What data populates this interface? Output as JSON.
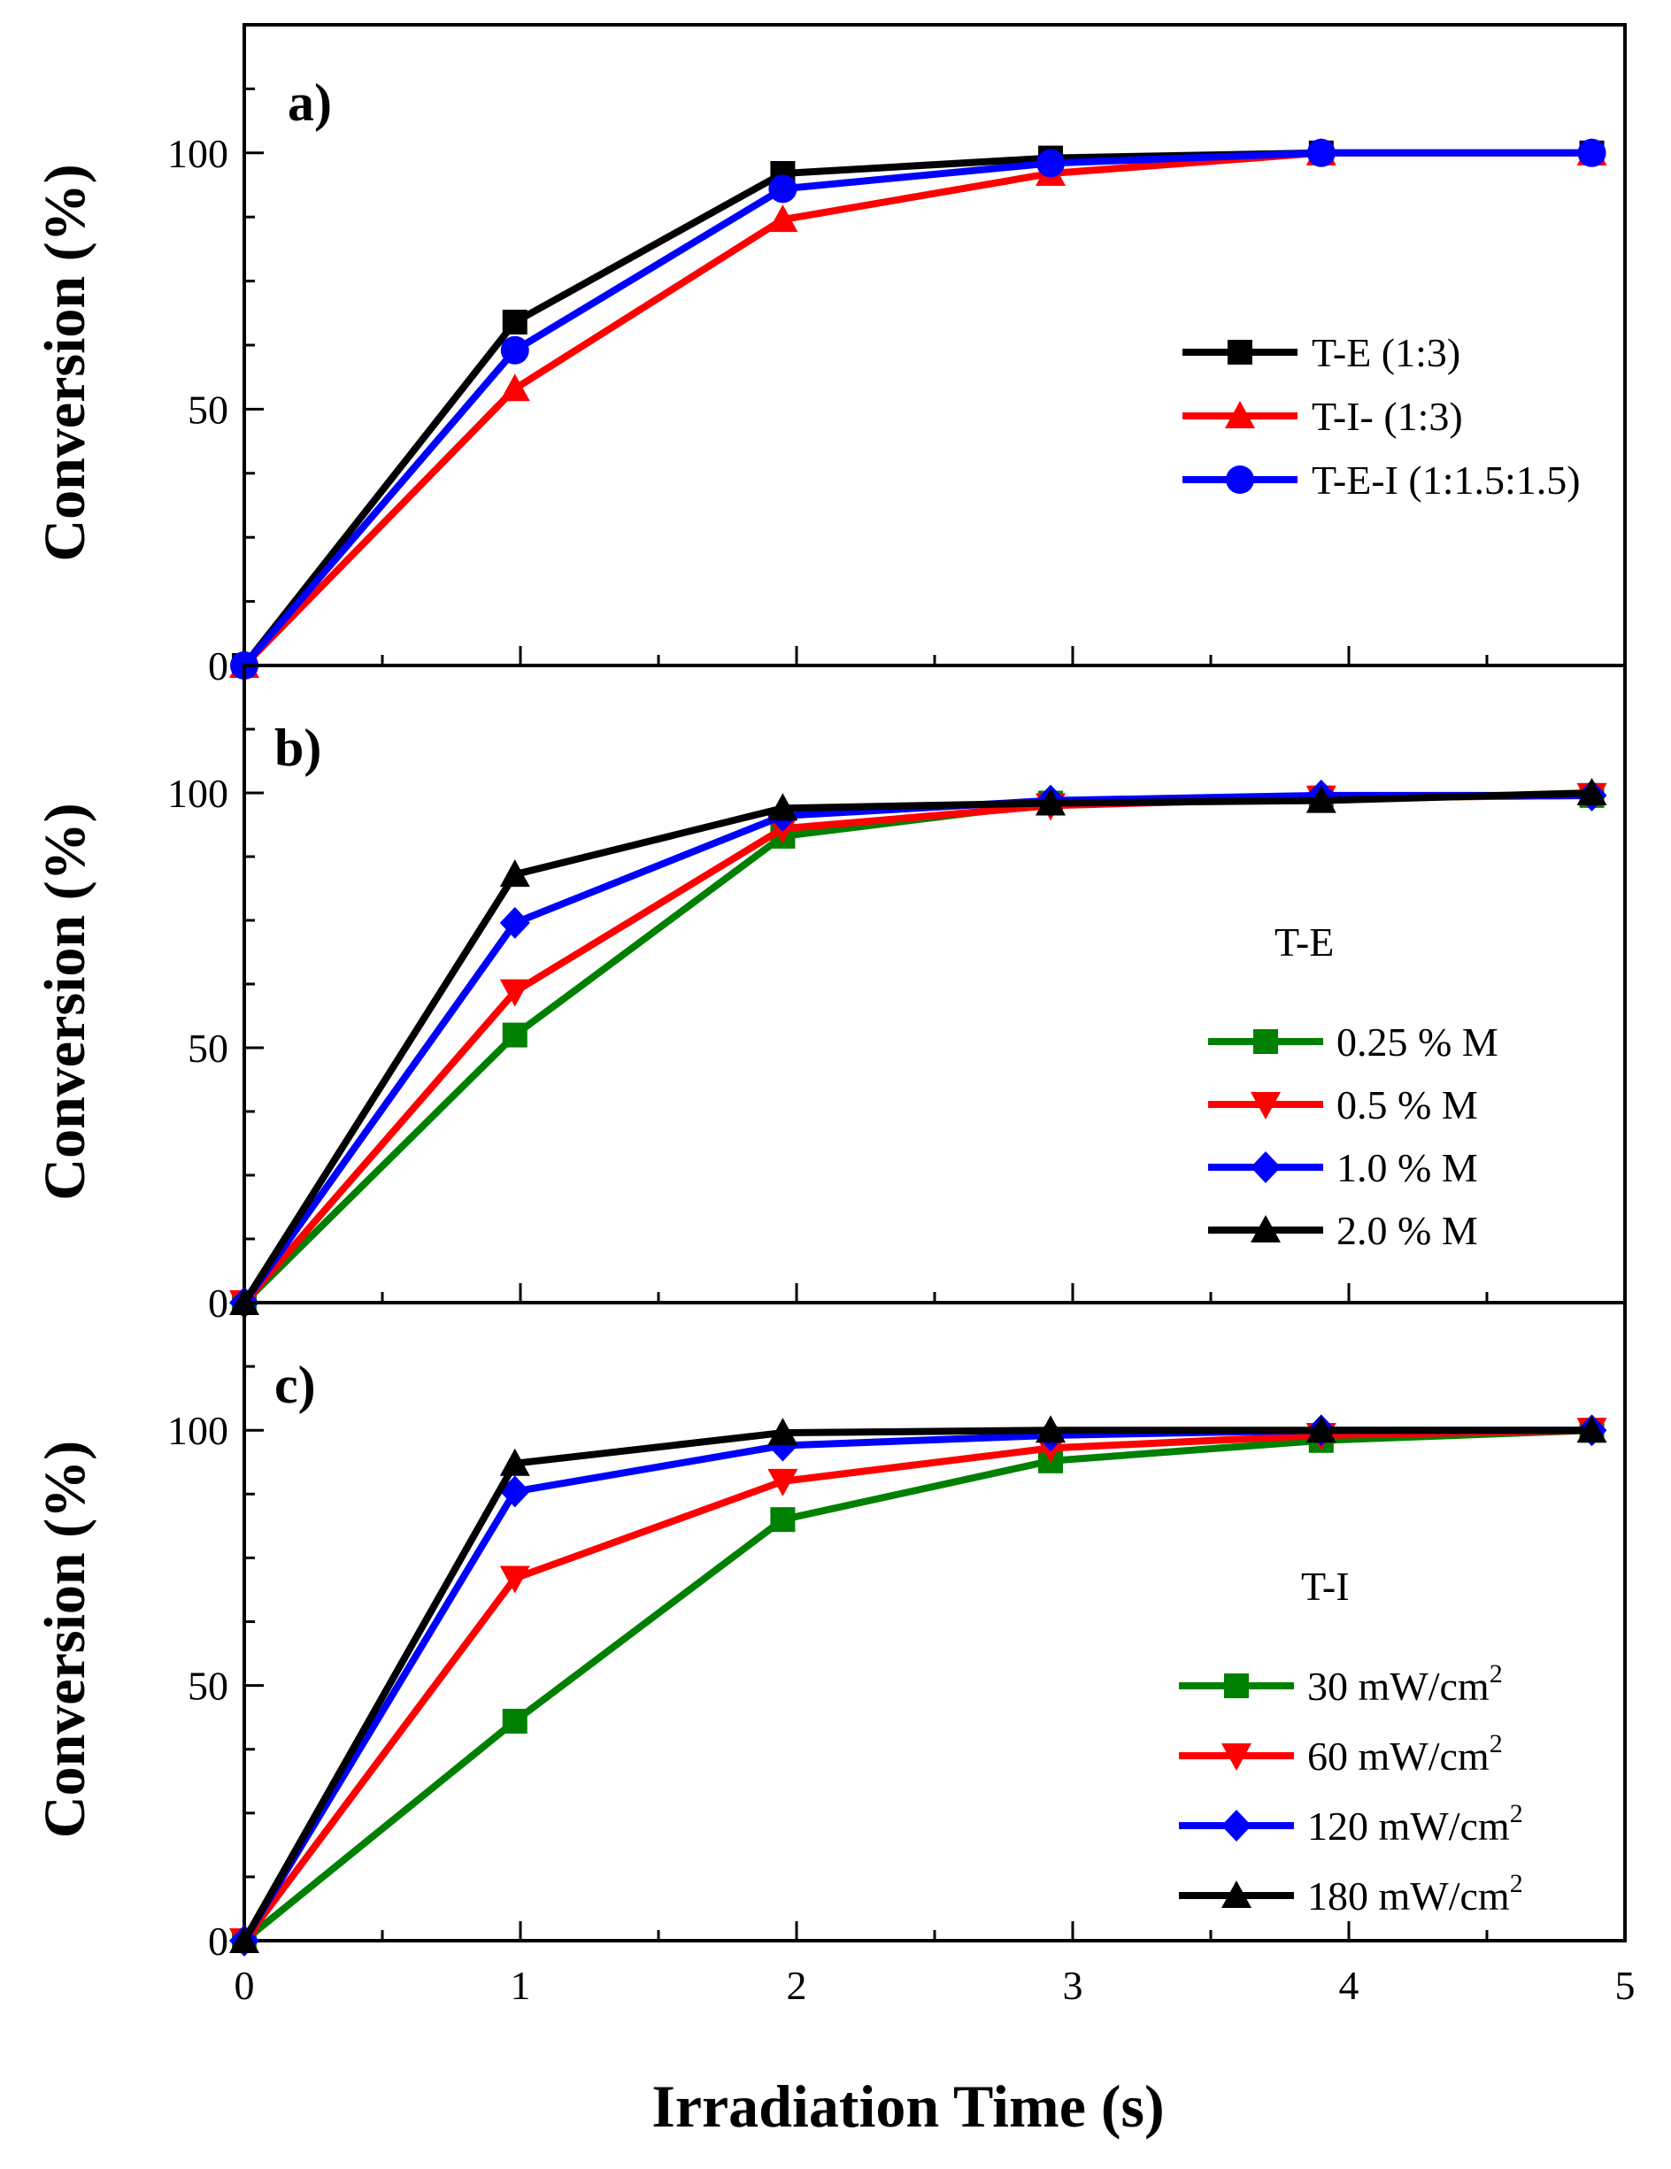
{
  "chart_data": [
    {
      "type": "line",
      "title": "a)",
      "xlabel": "",
      "ylabel": "Conversion (%)",
      "xlim": [
        0,
        5
      ],
      "ylim": [
        0,
        125
      ],
      "xticks": [
        "0",
        "1",
        "2",
        "3",
        "4",
        "5"
      ],
      "yticks": [
        "0",
        "50",
        "100"
      ],
      "annotation": "",
      "series": [
        {
          "name": "T-E (1:3)",
          "color": "#000000",
          "marker": "square",
          "x": [
            0,
            0.98,
            1.95,
            2.92,
            3.9,
            4.88
          ],
          "values": [
            0,
            67,
            96,
            99,
            100,
            100
          ]
        },
        {
          "name": "T-I- (1:3)",
          "color": "#ff0000",
          "marker": "triangle-up",
          "x": [
            0,
            0.98,
            1.95,
            2.92,
            3.9,
            4.88
          ],
          "values": [
            0,
            54,
            87,
            96,
            100,
            100
          ]
        },
        {
          "name": "T-E-I (1:1.5:1.5)",
          "color": "#0000ff",
          "marker": "circle",
          "x": [
            0,
            0.98,
            1.95,
            2.92,
            3.9,
            4.88
          ],
          "values": [
            0,
            61.5,
            93,
            98,
            100,
            100
          ]
        }
      ]
    },
    {
      "type": "line",
      "title": "b)",
      "xlabel": "",
      "ylabel": "Conversion (%)",
      "xlim": [
        0,
        5
      ],
      "ylim": [
        0,
        125
      ],
      "xticks": [
        "0",
        "1",
        "2",
        "3",
        "4",
        "5"
      ],
      "yticks": [
        "0",
        "50",
        "100"
      ],
      "annotation": "T-E",
      "series": [
        {
          "name": "0.25 % M",
          "color": "#008000",
          "marker": "square",
          "x": [
            0,
            0.98,
            1.95,
            2.92,
            3.9,
            4.88
          ],
          "values": [
            0,
            52.5,
            91.5,
            98,
            99,
            99.5
          ]
        },
        {
          "name": "0.5 % M",
          "color": "#ff0000",
          "marker": "triangle-down",
          "x": [
            0,
            0.98,
            1.95,
            2.92,
            3.9,
            4.88
          ],
          "values": [
            0,
            61,
            93,
            97.5,
            99,
            99.5
          ]
        },
        {
          "name": "1.0 % M",
          "color": "#0000ff",
          "marker": "diamond",
          "x": [
            0,
            0.98,
            1.95,
            2.92,
            3.9,
            4.88
          ],
          "values": [
            0,
            74.5,
            95.5,
            98.5,
            99.5,
            99.5
          ]
        },
        {
          "name": "2.0 % M",
          "color": "#000000",
          "marker": "triangle-up",
          "x": [
            0,
            0.98,
            1.95,
            2.92,
            3.9,
            4.88
          ],
          "values": [
            0,
            84,
            97,
            98,
            98.5,
            100
          ]
        }
      ]
    },
    {
      "type": "line",
      "title": "c)",
      "xlabel": "Irradiation Time (s)",
      "ylabel": "Conversion (%)",
      "xlim": [
        0,
        5
      ],
      "ylim": [
        0,
        125
      ],
      "xticks": [
        "0",
        "1",
        "2",
        "3",
        "4",
        "5"
      ],
      "yticks": [
        "0",
        "50",
        "100"
      ],
      "annotation": "T-I",
      "series": [
        {
          "name": "30 mW/cm",
          "sup": "2",
          "color": "#008000",
          "marker": "square",
          "x": [
            0,
            0.98,
            1.95,
            2.92,
            3.9,
            4.88
          ],
          "values": [
            0,
            43,
            82.5,
            94,
            98,
            100
          ]
        },
        {
          "name": "60 mW/cm",
          "sup": "2",
          "color": "#ff0000",
          "marker": "triangle-down",
          "x": [
            0,
            0.98,
            1.95,
            2.92,
            3.9,
            4.88
          ],
          "values": [
            0,
            71,
            90,
            96.5,
            99,
            100
          ]
        },
        {
          "name": "120 mW/cm",
          "sup": "2",
          "color": "#0000ff",
          "marker": "diamond",
          "x": [
            0,
            0.98,
            1.95,
            2.92,
            3.9,
            4.88
          ],
          "values": [
            0,
            88,
            97,
            99,
            100,
            100
          ]
        },
        {
          "name": "180 mW/cm",
          "sup": "2",
          "color": "#000000",
          "marker": "triangle-up",
          "x": [
            0,
            0.98,
            1.95,
            2.92,
            3.9,
            4.88
          ],
          "values": [
            0,
            93.5,
            99.5,
            100,
            100,
            100
          ]
        }
      ]
    }
  ]
}
